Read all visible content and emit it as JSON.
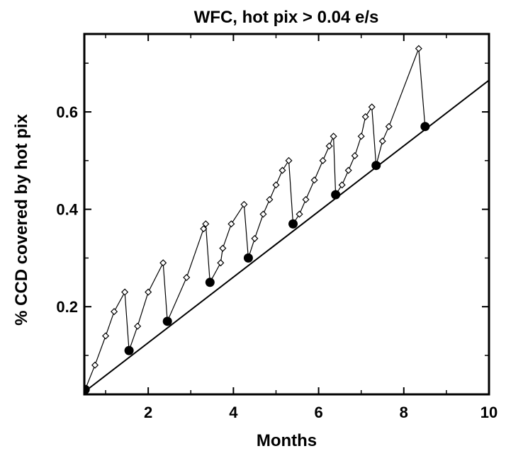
{
  "chart_data": {
    "type": "line",
    "title": "WFC, hot pix > 0.04 e/s",
    "xlabel": "Months",
    "ylabel": "% CCD covered by hot pix",
    "xlim": [
      0.5,
      10
    ],
    "ylim": [
      0.02,
      0.76
    ],
    "x_ticks": [
      2,
      4,
      6,
      8,
      10
    ],
    "x_tick_labels": [
      "2",
      "4",
      "6",
      "8",
      "10"
    ],
    "y_ticks": [
      0.2,
      0.4,
      0.6
    ],
    "y_tick_labels": [
      "0.2",
      "0.4",
      "0.6"
    ],
    "x_minor_ticks": [
      1,
      3,
      5,
      7,
      9
    ],
    "y_minor_ticks": [
      0.1,
      0.3,
      0.5,
      0.7
    ],
    "grid": false,
    "legend": "none",
    "series": [
      {
        "marker": "open-diamond",
        "style": "connected",
        "points": [
          [
            0.52,
            0.03
          ],
          [
            0.75,
            0.08
          ],
          [
            1.0,
            0.14
          ],
          [
            1.2,
            0.19
          ],
          [
            1.45,
            0.23
          ],
          [
            1.55,
            0.11
          ],
          [
            1.75,
            0.16
          ],
          [
            2.0,
            0.23
          ],
          [
            2.35,
            0.29
          ],
          [
            2.45,
            0.17
          ],
          [
            2.9,
            0.26
          ],
          [
            3.3,
            0.36
          ],
          [
            3.35,
            0.37
          ],
          [
            3.45,
            0.25
          ],
          [
            3.7,
            0.29
          ],
          [
            3.75,
            0.32
          ],
          [
            3.95,
            0.37
          ],
          [
            4.25,
            0.41
          ],
          [
            4.35,
            0.3
          ],
          [
            4.5,
            0.34
          ],
          [
            4.7,
            0.39
          ],
          [
            4.85,
            0.42
          ],
          [
            5.0,
            0.45
          ],
          [
            5.15,
            0.48
          ],
          [
            5.3,
            0.5
          ],
          [
            5.4,
            0.37
          ],
          [
            5.55,
            0.39
          ],
          [
            5.7,
            0.42
          ],
          [
            5.9,
            0.46
          ],
          [
            6.1,
            0.5
          ],
          [
            6.25,
            0.53
          ],
          [
            6.35,
            0.55
          ],
          [
            6.4,
            0.43
          ],
          [
            6.55,
            0.45
          ],
          [
            6.7,
            0.48
          ],
          [
            6.85,
            0.51
          ],
          [
            7.0,
            0.55
          ],
          [
            7.1,
            0.59
          ],
          [
            7.25,
            0.61
          ],
          [
            7.35,
            0.49
          ],
          [
            7.5,
            0.54
          ],
          [
            7.65,
            0.57
          ],
          [
            8.35,
            0.73
          ],
          [
            8.5,
            0.57
          ]
        ]
      },
      {
        "marker": "filled-circle",
        "style": "points",
        "points": [
          [
            0.52,
            0.03
          ],
          [
            1.55,
            0.11
          ],
          [
            2.45,
            0.17
          ],
          [
            3.45,
            0.25
          ],
          [
            4.35,
            0.3
          ],
          [
            5.4,
            0.37
          ],
          [
            6.4,
            0.43
          ],
          [
            7.35,
            0.49
          ],
          [
            8.5,
            0.57
          ]
        ]
      },
      {
        "style": "straight-line",
        "points": [
          [
            0.5,
            0.025
          ],
          [
            10,
            0.665
          ]
        ]
      }
    ]
  }
}
